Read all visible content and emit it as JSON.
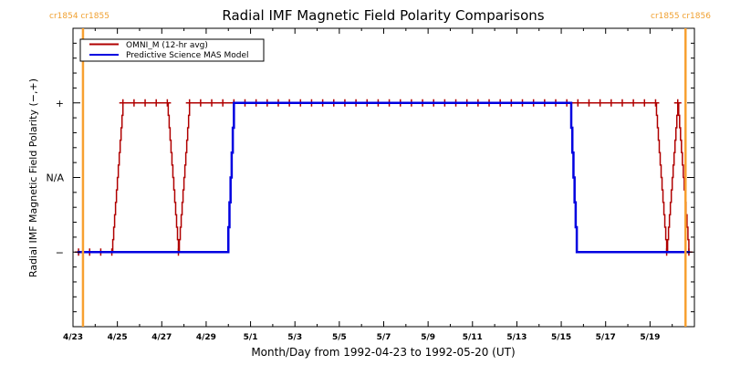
{
  "chart_data": {
    "type": "line",
    "title": "Radial IMF Magnetic Field Polarity Comparisons",
    "xlabel": "Month/Day from 1992-04-23 to 1992-05-20 (UT)",
    "ylabel": "Radial IMF Magnetic Field Polarity (−,+)",
    "x_unit": "days since 1992-04-23 00:00 UT",
    "xlim": [
      0,
      28
    ],
    "ylim": [
      -2,
      2
    ],
    "x_ticks": [
      {
        "day": 0,
        "label": "4/23"
      },
      {
        "day": 2,
        "label": "4/25"
      },
      {
        "day": 4,
        "label": "4/27"
      },
      {
        "day": 6,
        "label": "4/29"
      },
      {
        "day": 8,
        "label": "5/1"
      },
      {
        "day": 10,
        "label": "5/3"
      },
      {
        "day": 12,
        "label": "5/5"
      },
      {
        "day": 14,
        "label": "5/7"
      },
      {
        "day": 16,
        "label": "5/9"
      },
      {
        "day": 18,
        "label": "5/11"
      },
      {
        "day": 20,
        "label": "5/13"
      },
      {
        "day": 22,
        "label": "5/15"
      },
      {
        "day": 24,
        "label": "5/17"
      },
      {
        "day": 26,
        "label": "5/19"
      }
    ],
    "y_ticks": [
      {
        "value": 1,
        "label": "+"
      },
      {
        "value": 0,
        "label": "N/A"
      },
      {
        "value": -1,
        "label": "−"
      }
    ],
    "carrington_markers": [
      {
        "day": 0.45,
        "label": "cr1854 cr1855",
        "position": "top-left"
      },
      {
        "day": 27.6,
        "label": "cr1855 cr1856",
        "position": "top-right"
      }
    ],
    "legend": {
      "placement": "top-left",
      "entries": [
        "OMNI_M (12-hr avg)",
        "Predictive Science MAS Model"
      ]
    },
    "series": [
      {
        "name": "OMNI_M (12-hr avg)",
        "color": "#b00000",
        "markers": true,
        "points": [
          [
            0.25,
            -1
          ],
          [
            0.75,
            -1
          ],
          [
            1.25,
            -1
          ],
          [
            1.75,
            -1
          ],
          [
            2.25,
            1
          ],
          [
            2.75,
            1
          ],
          [
            3.25,
            1
          ],
          [
            3.75,
            1
          ],
          [
            4.25,
            1
          ],
          [
            4.75,
            -1
          ],
          [
            5.25,
            1
          ],
          [
            5.75,
            1
          ],
          [
            6.25,
            1
          ],
          [
            6.75,
            1
          ],
          [
            7.25,
            1
          ],
          [
            7.75,
            1
          ],
          [
            8.25,
            1
          ],
          [
            8.75,
            1
          ],
          [
            9.25,
            1
          ],
          [
            9.75,
            1
          ],
          [
            10.25,
            1
          ],
          [
            10.75,
            1
          ],
          [
            11.25,
            1
          ],
          [
            11.75,
            1
          ],
          [
            12.25,
            1
          ],
          [
            12.75,
            1
          ],
          [
            13.25,
            1
          ],
          [
            13.75,
            1
          ],
          [
            14.25,
            1
          ],
          [
            14.75,
            1
          ],
          [
            15.25,
            1
          ],
          [
            15.75,
            1
          ],
          [
            16.25,
            1
          ],
          [
            16.75,
            1
          ],
          [
            17.25,
            1
          ],
          [
            17.75,
            1
          ],
          [
            18.25,
            1
          ],
          [
            18.75,
            1
          ],
          [
            19.25,
            1
          ],
          [
            19.75,
            1
          ],
          [
            20.25,
            1
          ],
          [
            20.75,
            1
          ],
          [
            21.25,
            1
          ],
          [
            21.75,
            1
          ],
          [
            22.25,
            1
          ],
          [
            22.75,
            1
          ],
          [
            23.25,
            1
          ],
          [
            23.75,
            1
          ],
          [
            24.25,
            1
          ],
          [
            24.75,
            1
          ],
          [
            25.25,
            1
          ],
          [
            25.75,
            1
          ],
          [
            26.25,
            1
          ],
          [
            26.75,
            -1
          ],
          [
            27.25,
            1
          ],
          [
            27.75,
            -1
          ]
        ]
      },
      {
        "name": "Predictive Science MAS Model",
        "color": "#0000e0",
        "markers": false,
        "points": [
          [
            0.2,
            -1
          ],
          [
            6.95,
            -1
          ],
          [
            7.25,
            1
          ],
          [
            22.4,
            1
          ],
          [
            22.7,
            -1
          ],
          [
            27.8,
            -1
          ]
        ]
      }
    ]
  },
  "colors": {
    "carrington_line": "#f8a030",
    "frame": "#000000"
  }
}
